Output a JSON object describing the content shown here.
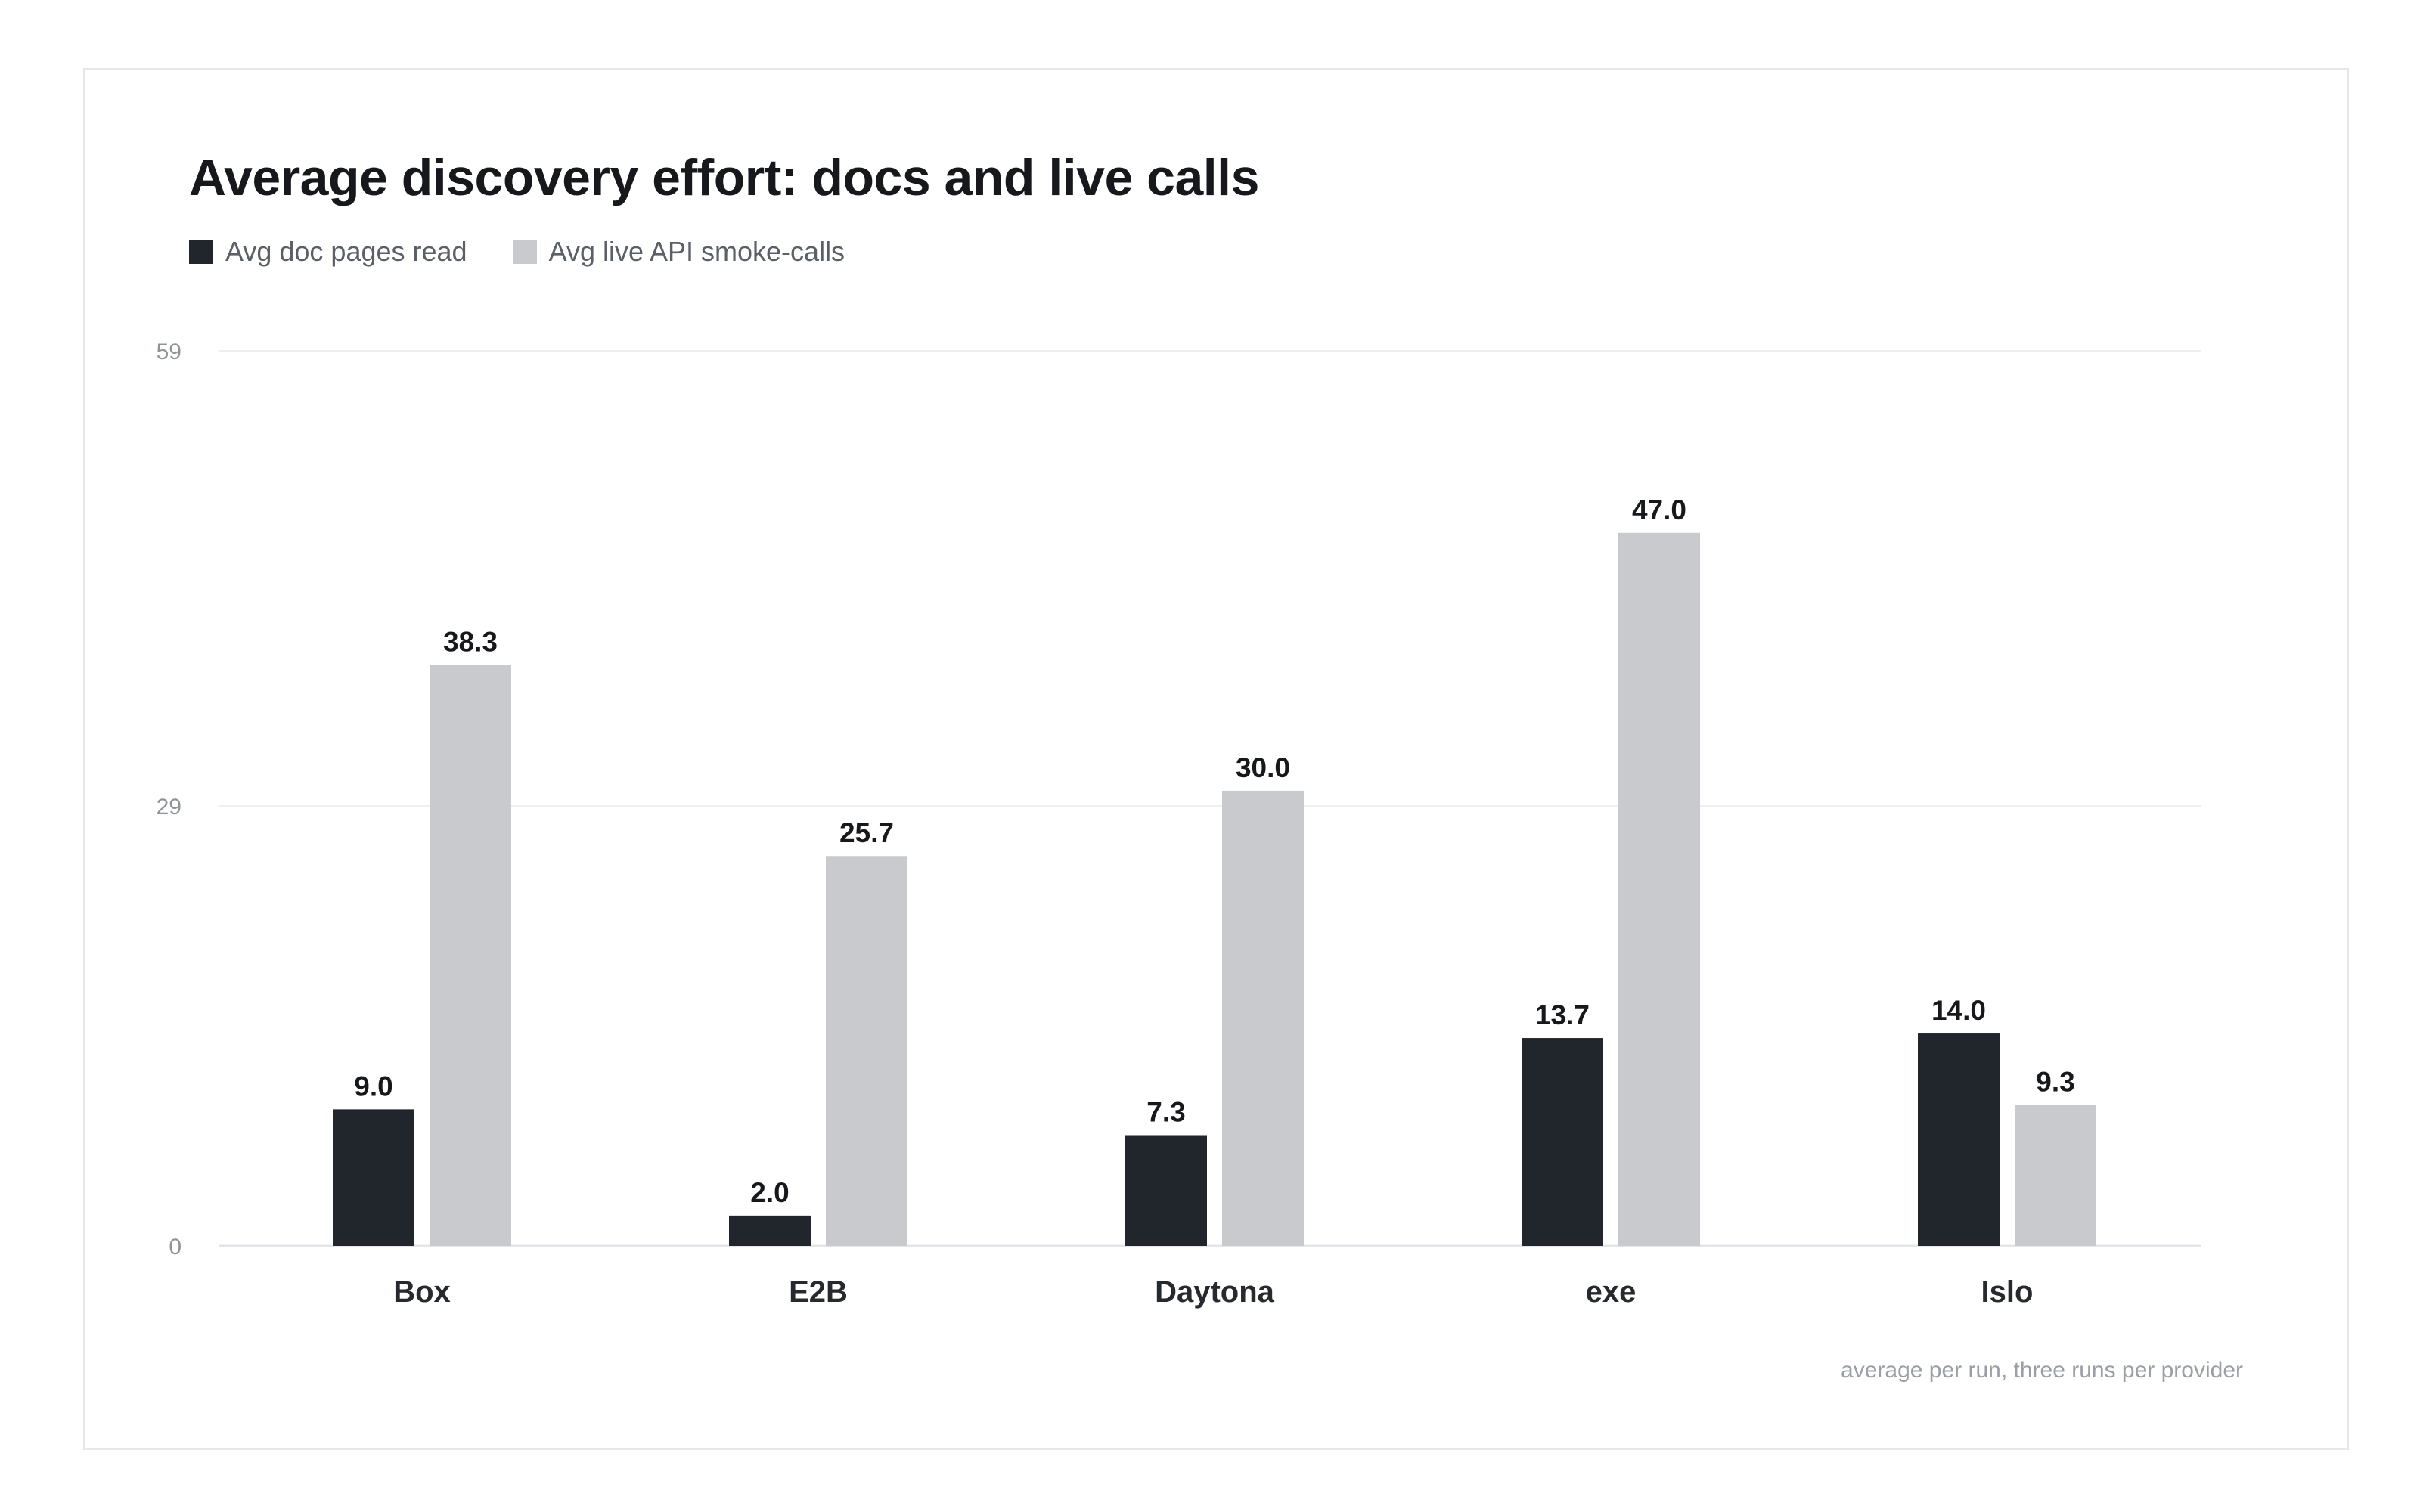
{
  "title": "Average discovery effort: docs and live calls",
  "footnote": "average per run, three runs per provider",
  "legend": [
    {
      "label": "Avg doc pages read",
      "color": "#21252c"
    },
    {
      "label": "Avg live API smoke-calls",
      "color": "#c8cace"
    }
  ],
  "chart_data": {
    "type": "bar",
    "title": "Average discovery effort: docs and live calls",
    "categories": [
      "Box",
      "E2B",
      "Daytona",
      "exe",
      "Islo"
    ],
    "series": [
      {
        "name": "Avg doc pages read",
        "color": "#21252c",
        "values": [
          9.0,
          2.0,
          7.3,
          13.7,
          14.0
        ],
        "labels": [
          "9.0",
          "2.0",
          "7.3",
          "13.7",
          "14.0"
        ]
      },
      {
        "name": "Avg live API smoke-calls",
        "color": "#c8cace",
        "values": [
          38.3,
          25.7,
          30.0,
          47.0,
          9.3
        ],
        "labels": [
          "38.3",
          "25.7",
          "30.0",
          "47.0",
          "9.3"
        ]
      }
    ],
    "yticks": [
      "0",
      "29",
      "59"
    ],
    "ylim": [
      0,
      58.6
    ],
    "grid": true,
    "legend_position": "top-left",
    "xlabel": "",
    "ylabel": ""
  }
}
